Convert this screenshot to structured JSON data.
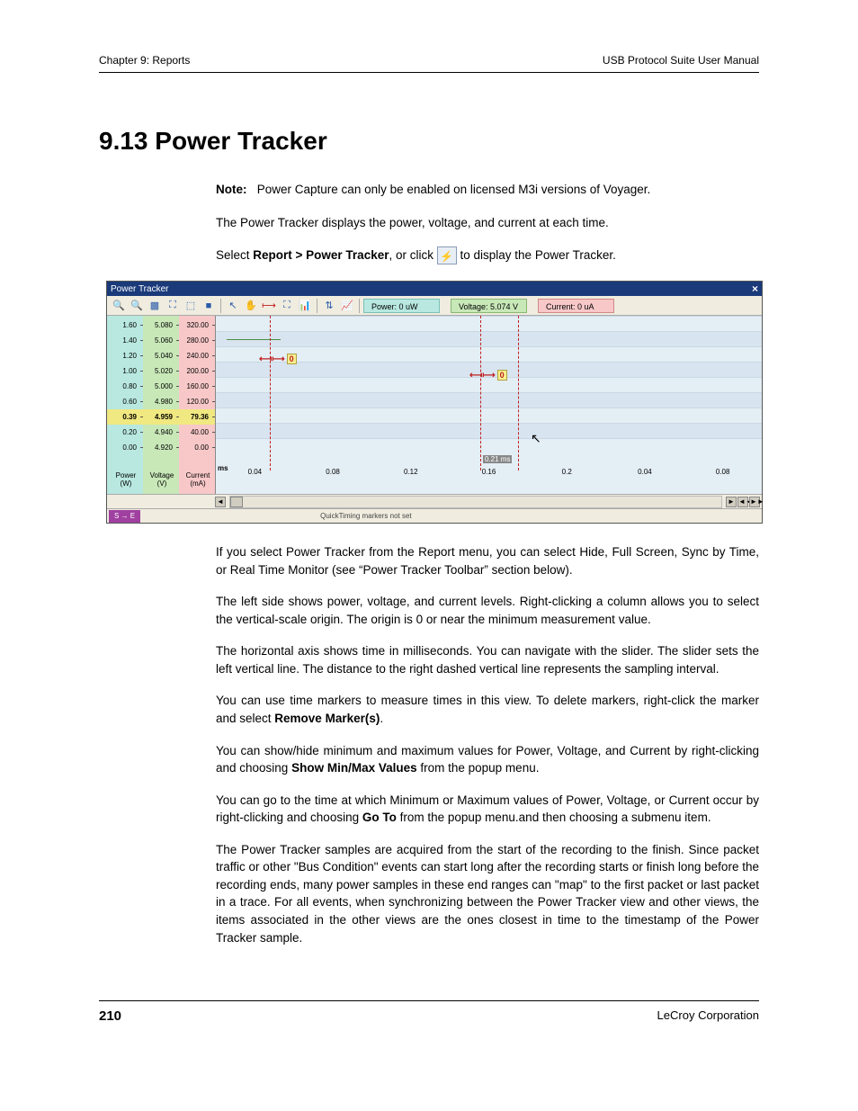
{
  "header": {
    "left": "Chapter 9: Reports",
    "right": "USB Protocol Suite User Manual"
  },
  "title": "9.13 Power Tracker",
  "note": {
    "label": "Note:",
    "text": "Power Capture can only be enabled on licensed M3i versions of Voyager."
  },
  "intro1": "The Power Tracker displays the power, voltage, and current at each time.",
  "intro2a": "Select ",
  "intro2b": "Report > Power Tracker",
  "intro2c": ", or click ",
  "intro2d": " to display the Power Tracker.",
  "window": {
    "title": "Power Tracker",
    "readouts": {
      "power": "Power: 0 uW",
      "voltage": "Voltage: 5.074 V",
      "current": "Current: 0 uA"
    },
    "y_power": [
      "1.60",
      "1.40",
      "1.20",
      "1.00",
      "0.80",
      "0.60",
      "0.39",
      "0.20",
      "0.00"
    ],
    "y_voltage": [
      "5.080",
      "5.060",
      "5.040",
      "5.020",
      "5.000",
      "4.980",
      "4.959",
      "4.940",
      "4.920"
    ],
    "y_current": [
      "320.00",
      "280.00",
      "240.00",
      "200.00",
      "160.00",
      "120.00",
      "79.36",
      "40.00",
      "0.00"
    ],
    "y_highlight_index": 6,
    "axis_labels": {
      "power": "Power\n(W)",
      "voltage": "Voltage\n(V)",
      "current": "Current\n(mA)",
      "time": "ms"
    },
    "x_ticks": [
      "0.04",
      "0.08",
      "0.12",
      "0.16",
      "0.2",
      "0.04",
      "0.08"
    ],
    "sample_interval_label": "0.21 ms",
    "marker_value": "0",
    "footer": {
      "se": "S  →  E",
      "quicktiming": "QuickTiming markers not set"
    },
    "colors": {
      "titlebar": "#1a3a7a",
      "power_col": "#b8e8e0",
      "voltage_col": "#c8e8b8",
      "current_col": "#f8c8c8",
      "chart_bg": "#e4eef5",
      "toolbar_bg": "#f0ede0",
      "highlight": "#f0e880",
      "marker_red": "#c02020"
    }
  },
  "body_paragraphs": [
    "If you select Power Tracker from the Report menu, you can select Hide, Full Screen, Sync by Time, or Real Time Monitor (see “Power Tracker Toolbar” section below).",
    "The left side shows power, voltage, and current levels. Right-clicking a column allows you to select the vertical-scale origin. The origin is 0 or near the minimum measurement value.",
    "The horizontal axis shows time in milliseconds. You can navigate with the slider. The slider sets the left vertical line. The distance to the right dashed vertical line represents the sampling interval."
  ],
  "p_markers_a": "You can use time markers to measure times in this view. To delete markers, right-click the marker and select ",
  "p_markers_b": "Remove Marker(s)",
  "p_markers_c": ".",
  "p_minmax_a": "You can show/hide minimum and maximum values for Power, Voltage, and Current by right-clicking and choosing ",
  "p_minmax_b": "Show Min/Max Values",
  "p_minmax_c": " from the popup menu.",
  "p_goto_a": "You can go to the time at which Minimum or Maximum values of Power, Voltage, or Current occur by right-clicking and choosing ",
  "p_goto_b": "Go To",
  "p_goto_c": " from the popup menu.and then choosing a submenu item.",
  "p_samples": "The Power Tracker samples are acquired from the start of the recording to the finish. Since packet traffic or other \"Bus Condition\" events can start long after the recording starts or finish long before the recording ends, many power samples in these end ranges can \"map\" to the first packet or last packet in a trace. For all events, when synchronizing between the Power Tracker view and other views, the items associated in the other views are the ones closest in time to the timestamp of the Power Tracker sample.",
  "footer": {
    "page": "210",
    "company": "LeCroy Corporation"
  }
}
